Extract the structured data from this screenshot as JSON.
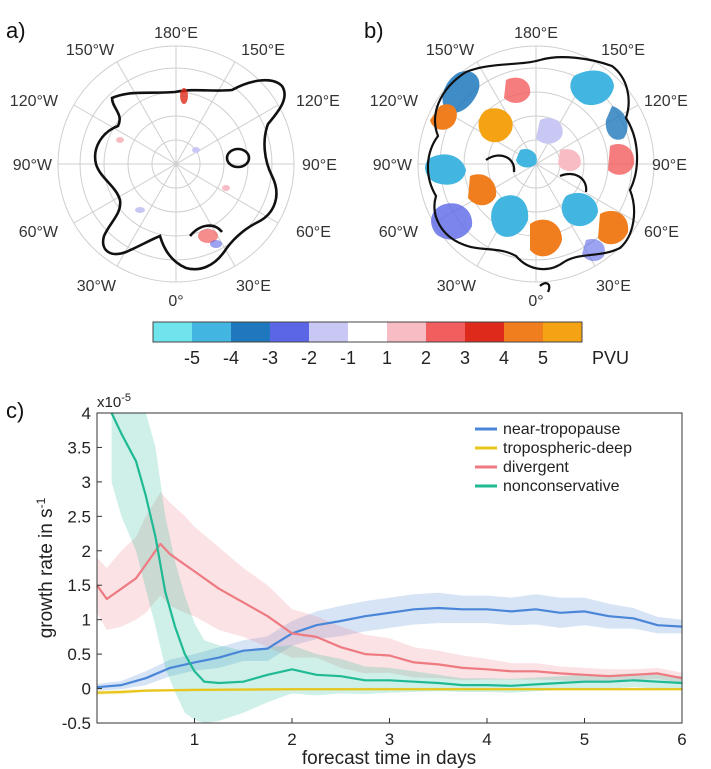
{
  "panels": {
    "a": {
      "label": "a)",
      "longitude_labels": [
        "180°E",
        "150°E",
        "120°E",
        "90°E",
        "60°E",
        "30°E",
        "0°",
        "30°W",
        "60°W",
        "90°W",
        "120°W",
        "150°W"
      ]
    },
    "b": {
      "label": "b)",
      "longitude_labels": [
        "180°E",
        "150°E",
        "120°E",
        "90°E",
        "60°E",
        "30°E",
        "0°",
        "30°W",
        "60°W",
        "90°W",
        "120°W",
        "150°W"
      ]
    },
    "c": {
      "label": "c)"
    }
  },
  "colorbar": {
    "unit": "PVU",
    "ticks": [
      "-5",
      "-4",
      "-3",
      "-2",
      "-1",
      "1",
      "2",
      "3",
      "4",
      "5"
    ],
    "colors": [
      "#6fe4ec",
      "#42b6e0",
      "#1f78bd",
      "#5a66e6",
      "#c9c8f4",
      "#ffffff",
      "#f8bcc4",
      "#f25d5d",
      "#dd2a1a",
      "#f07e1e",
      "#f5a213"
    ]
  },
  "chart_data": {
    "type": "line",
    "title": "",
    "xlabel": "forecast time in days",
    "ylabel": "growth rate in s",
    "ylabel_superscript": "-1",
    "y_scale_label": "x10",
    "y_scale_exponent": "-5",
    "xlim": [
      0,
      6
    ],
    "ylim": [
      -0.5,
      4
    ],
    "xticks": [
      "1",
      "2",
      "3",
      "4",
      "5",
      "6"
    ],
    "yticks": [
      "-0.5",
      "0",
      "0.5",
      "1",
      "1.5",
      "2",
      "2.5",
      "3",
      "3.5",
      "4"
    ],
    "legend_position": "top-right",
    "series": [
      {
        "name": "near-tropopause",
        "color": "#4a86d8",
        "x": [
          0,
          0.25,
          0.5,
          0.75,
          1.0,
          1.25,
          1.5,
          1.75,
          2.0,
          2.25,
          2.5,
          2.75,
          3.0,
          3.25,
          3.5,
          3.75,
          4.0,
          4.25,
          4.5,
          4.75,
          5.0,
          5.25,
          5.5,
          5.75,
          6.0
        ],
        "values": [
          0.02,
          0.05,
          0.15,
          0.3,
          0.38,
          0.45,
          0.55,
          0.58,
          0.8,
          0.92,
          0.98,
          1.05,
          1.1,
          1.15,
          1.17,
          1.15,
          1.15,
          1.12,
          1.15,
          1.1,
          1.12,
          1.05,
          1.02,
          0.92,
          0.9
        ],
        "band": [
          0.05,
          0.06,
          0.1,
          0.12,
          0.12,
          0.15,
          0.15,
          0.18,
          0.18,
          0.2,
          0.22,
          0.22,
          0.22,
          0.22,
          0.22,
          0.2,
          0.2,
          0.2,
          0.22,
          0.22,
          0.2,
          0.18,
          0.15,
          0.12,
          0.1
        ]
      },
      {
        "name": "tropospheric-deep",
        "color": "#e8c51a",
        "x": [
          0,
          0.25,
          0.5,
          1.0,
          2.0,
          3.0,
          4.0,
          5.0,
          6.0
        ],
        "values": [
          -0.06,
          -0.05,
          -0.03,
          -0.02,
          -0.01,
          -0.01,
          -0.01,
          -0.01,
          -0.01
        ],
        "band": [
          0.03,
          0.03,
          0.02,
          0.02,
          0.02,
          0.02,
          0.02,
          0.02,
          0.02
        ]
      },
      {
        "name": "divergent",
        "color": "#ee7a82",
        "x": [
          0,
          0.1,
          0.25,
          0.4,
          0.5,
          0.65,
          0.75,
          0.9,
          1.0,
          1.25,
          1.5,
          1.75,
          2.0,
          2.25,
          2.5,
          2.75,
          3.0,
          3.25,
          3.5,
          3.75,
          4.0,
          4.25,
          4.5,
          4.75,
          5.0,
          5.25,
          5.5,
          5.75,
          6.0
        ],
        "values": [
          1.5,
          1.3,
          1.45,
          1.6,
          1.8,
          2.1,
          1.95,
          1.8,
          1.7,
          1.45,
          1.25,
          1.05,
          0.8,
          0.75,
          0.6,
          0.5,
          0.48,
          0.38,
          0.35,
          0.3,
          0.28,
          0.25,
          0.25,
          0.22,
          0.2,
          0.18,
          0.2,
          0.22,
          0.15
        ],
        "band": [
          0.4,
          0.45,
          0.55,
          0.6,
          0.7,
          0.75,
          0.75,
          0.7,
          0.65,
          0.6,
          0.5,
          0.45,
          0.35,
          0.3,
          0.3,
          0.28,
          0.25,
          0.22,
          0.2,
          0.18,
          0.15,
          0.12,
          0.12,
          0.1,
          0.1,
          0.1,
          0.08,
          0.08,
          0.08
        ]
      },
      {
        "name": "nonconservative",
        "color": "#1fba94",
        "x": [
          0.15,
          0.25,
          0.4,
          0.5,
          0.6,
          0.7,
          0.8,
          0.9,
          1.0,
          1.1,
          1.25,
          1.5,
          1.75,
          2.0,
          2.25,
          2.5,
          2.75,
          3.0,
          3.25,
          3.5,
          3.75,
          4.0,
          4.25,
          4.5,
          4.75,
          5.0,
          5.25,
          5.5,
          5.75,
          6.0
        ],
        "values": [
          4.0,
          3.7,
          3.3,
          2.8,
          2.2,
          1.4,
          0.9,
          0.5,
          0.25,
          0.1,
          0.08,
          0.1,
          0.2,
          0.28,
          0.2,
          0.18,
          0.12,
          0.12,
          0.1,
          0.08,
          0.05,
          0.05,
          0.04,
          0.06,
          0.08,
          0.1,
          0.1,
          0.12,
          0.1,
          0.08
        ],
        "band": [
          1.0,
          1.2,
          1.3,
          1.35,
          1.3,
          1.1,
          0.95,
          0.85,
          0.7,
          0.6,
          0.55,
          0.45,
          0.4,
          0.35,
          0.3,
          0.25,
          0.2,
          0.18,
          0.15,
          0.12,
          0.1,
          0.1,
          0.1,
          0.1,
          0.1,
          0.1,
          0.1,
          0.1,
          0.1,
          0.1
        ]
      }
    ]
  }
}
